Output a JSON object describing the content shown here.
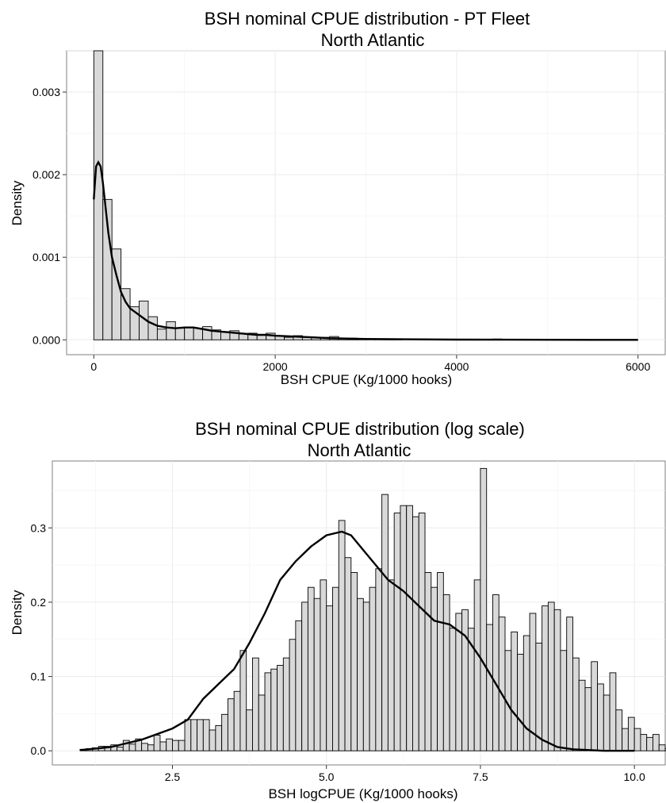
{
  "chart_data": [
    {
      "type": "bar",
      "title": "BSH nominal CPUE distribution - PT Fleet",
      "subtitle": "North Atlantic",
      "xlabel": "BSH CPUE (Kg/1000 hooks)",
      "ylabel": "Density",
      "xlim": [
        -300,
        6300
      ],
      "ylim": [
        -0.00018,
        0.0035
      ],
      "xticks": [
        0,
        2000,
        4000,
        6000
      ],
      "xtick_labels": [
        "0",
        "2000",
        "4000",
        "6000"
      ],
      "yticks": [
        0,
        0.001,
        0.002,
        0.003
      ],
      "ytick_labels": [
        "0.000",
        "0.001",
        "0.002",
        "0.003"
      ],
      "grid": true,
      "bin_start": 0,
      "bin_width": 100,
      "series": [
        {
          "kind": "histogram",
          "values": [
            0.0035,
            0.0017,
            0.0011,
            0.00062,
            0.0004,
            0.00047,
            0.00028,
            0.00013,
            0.00022,
            0.00014,
            0.00015,
            0.00014,
            0.00016,
            0.00012,
            0.0001,
            0.00011,
            7e-05,
            8e-05,
            6e-05,
            8e-05,
            5e-05,
            3e-05,
            5e-05,
            3e-05,
            3e-05,
            3e-05,
            4e-05,
            2e-05,
            2e-05,
            1e-05,
            1e-05,
            1e-05,
            1e-05,
            1e-05,
            0.0,
            0.0,
            1e-05,
            0.0,
            0.0,
            0.0,
            0.0,
            0.0,
            0.0,
            0.0,
            1e-05,
            0.0,
            0.0,
            0.0,
            0.0,
            0.0,
            0.0,
            0.0,
            0.0,
            0.0,
            0.0,
            0.0,
            0.0,
            0.0,
            0.0,
            0.0
          ]
        },
        {
          "kind": "density",
          "x": [
            0,
            25,
            50,
            75,
            100,
            130,
            160,
            200,
            250,
            300,
            350,
            400,
            500,
            600,
            700,
            800,
            900,
            1000,
            1100,
            1200,
            1300,
            1400,
            1500,
            1600,
            1700,
            1800,
            1900,
            2000,
            2200,
            2400,
            2600,
            2800,
            3000,
            3300,
            3600,
            4000,
            4500,
            5000,
            5500,
            6000
          ],
          "y": [
            0.0017,
            0.0021,
            0.00215,
            0.0021,
            0.0019,
            0.0016,
            0.0013,
            0.001,
            0.00078,
            0.00058,
            0.00046,
            0.00038,
            0.0003,
            0.00022,
            0.00017,
            0.00015,
            0.00014,
            0.00015,
            0.00015,
            0.00013,
            0.00011,
            0.0001,
            9e-05,
            8e-05,
            7e-05,
            6e-05,
            6e-05,
            5e-05,
            4e-05,
            3e-05,
            2e-05,
            1.5e-05,
            1e-05,
            7e-06,
            5e-06,
            3e-06,
            2e-06,
            1e-06,
            0.0,
            0.0
          ]
        }
      ]
    },
    {
      "type": "bar",
      "title": "BSH nominal CPUE distribution (log scale)",
      "subtitle": "North Atlantic",
      "xlabel": "BSH logCPUE (Kg/1000 hooks)",
      "ylabel": "Density",
      "xlim": [
        0.55,
        10.5
      ],
      "ylim": [
        -0.019,
        0.39
      ],
      "xticks": [
        2.5,
        5.0,
        7.5,
        10.0
      ],
      "xtick_labels": [
        "2.5",
        "5.0",
        "7.5",
        "10.0"
      ],
      "yticks": [
        0,
        0.1,
        0.2,
        0.3
      ],
      "ytick_labels": [
        "0.0",
        "0.1",
        "0.2",
        "0.3"
      ],
      "grid": true,
      "bin_start": 1.0,
      "bin_width": 0.1,
      "series": [
        {
          "kind": "histogram",
          "values": [
            0.002,
            0.003,
            0.004,
            0.006,
            0.006,
            0.008,
            0.005,
            0.014,
            0.009,
            0.016,
            0.01,
            0.008,
            0.021,
            0.012,
            0.016,
            0.014,
            0.014,
            0.042,
            0.042,
            0.042,
            0.042,
            0.028,
            0.034,
            0.049,
            0.07,
            0.08,
            0.135,
            0.055,
            0.125,
            0.075,
            0.105,
            0.11,
            0.115,
            0.125,
            0.15,
            0.175,
            0.2,
            0.22,
            0.205,
            0.23,
            0.195,
            0.22,
            0.31,
            0.26,
            0.24,
            0.205,
            0.2,
            0.22,
            0.245,
            0.345,
            0.23,
            0.32,
            0.33,
            0.33,
            0.315,
            0.32,
            0.24,
            0.22,
            0.24,
            0.21,
            0.165,
            0.185,
            0.19,
            0.165,
            0.23,
            0.38,
            0.17,
            0.21,
            0.18,
            0.135,
            0.16,
            0.13,
            0.155,
            0.185,
            0.145,
            0.195,
            0.2,
            0.19,
            0.135,
            0.18,
            0.125,
            0.095,
            0.085,
            0.12,
            0.09,
            0.075,
            0.105,
            0.055,
            0.03,
            0.045,
            0.03,
            0.022,
            0.018,
            0.022,
            0.008,
            0.003
          ]
        },
        {
          "kind": "density",
          "x": [
            1.0,
            1.5,
            2.0,
            2.5,
            2.75,
            3.0,
            3.25,
            3.5,
            3.75,
            4.0,
            4.25,
            4.5,
            4.75,
            5.0,
            5.25,
            5.4,
            5.6,
            5.8,
            6.0,
            6.25,
            6.5,
            6.75,
            7.0,
            7.25,
            7.5,
            7.75,
            8.0,
            8.25,
            8.5,
            8.75,
            9.0,
            9.5,
            10.0
          ],
          "y": [
            0.001,
            0.005,
            0.015,
            0.03,
            0.042,
            0.07,
            0.09,
            0.11,
            0.145,
            0.185,
            0.23,
            0.255,
            0.275,
            0.29,
            0.295,
            0.29,
            0.27,
            0.25,
            0.23,
            0.215,
            0.195,
            0.175,
            0.17,
            0.155,
            0.125,
            0.09,
            0.055,
            0.03,
            0.015,
            0.005,
            0.002,
            0.0,
            0.0
          ]
        }
      ]
    }
  ]
}
